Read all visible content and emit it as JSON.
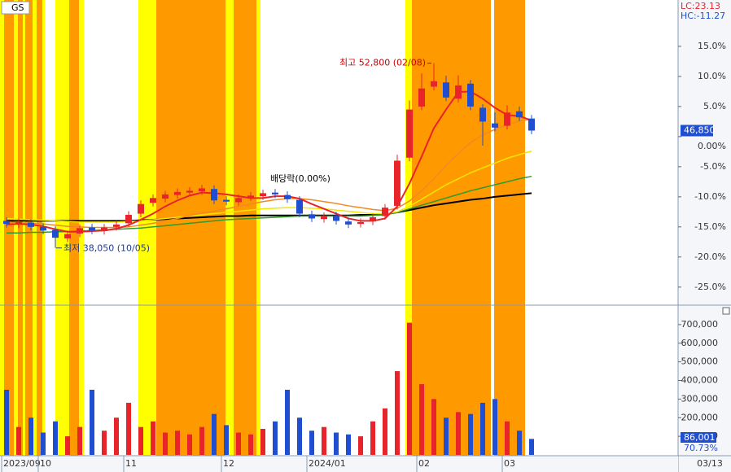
{
  "chart_data": [
    {
      "type": "candlestick",
      "title": "GS",
      "info": [
        "LC:23.13",
        "HC:-11.27"
      ],
      "categories": [
        "2023/09",
        null,
        null,
        "10",
        null,
        null,
        null,
        null,
        null,
        null,
        "11",
        null,
        null,
        null,
        null,
        null,
        null,
        null,
        "12",
        null,
        null,
        null,
        null,
        null,
        null,
        "2024/01",
        null,
        null,
        null,
        null,
        null,
        null,
        null,
        null,
        "02",
        null,
        null,
        null,
        null,
        null,
        null,
        "03",
        null,
        null
      ],
      "end_label": "03/13",
      "open": [
        -14.0,
        -14.6,
        -14.3,
        -15.0,
        -15.5,
        -16.9,
        -16.1,
        -15.1,
        -15.7,
        -15.0,
        -14.4,
        -12.8,
        -11.0,
        -10.3,
        -9.7,
        -9.3,
        -9.1,
        -8.7,
        -10.5,
        -10.9,
        -10.1,
        -9.9,
        -9.3,
        -9.7,
        -10.5,
        -12.9,
        -13.7,
        -13.1,
        -14.1,
        -14.5,
        -14.1,
        -13.2,
        -11.5,
        -3.5,
        5.0,
        8.3,
        9.0,
        6.3,
        8.8,
        4.8,
        2.2,
        1.8,
        4.2,
        3.0
      ],
      "high": [
        -13.4,
        -13.6,
        -13.7,
        -14.4,
        -14.9,
        -15.6,
        -14.6,
        -14.5,
        -14.5,
        -14.0,
        -12.4,
        -10.6,
        -9.6,
        -9.0,
        -8.6,
        -8.4,
        -8.0,
        -8.1,
        -9.9,
        -9.6,
        -9.2,
        -8.8,
        -8.7,
        -9.1,
        -9.9,
        -12.3,
        -12.6,
        -12.5,
        -13.5,
        -13.6,
        -12.8,
        -11.2,
        -3.0,
        6.0,
        10.5,
        12.2,
        10.1,
        10.2,
        9.4,
        5.4,
        4.0,
        5.2,
        5.0,
        3.6
      ],
      "low": [
        -15.1,
        -15.2,
        -15.6,
        -16.2,
        -18.5,
        -17.5,
        -16.7,
        -16.2,
        -16.3,
        -15.6,
        -15.0,
        -13.4,
        -11.6,
        -10.9,
        -10.3,
        -9.9,
        -9.7,
        -11.2,
        -11.4,
        -11.5,
        -10.7,
        -10.5,
        -10.2,
        -11.0,
        -13.4,
        -14.2,
        -14.3,
        -14.6,
        -15.2,
        -15.1,
        -14.7,
        -13.8,
        -12.1,
        -4.1,
        4.4,
        7.7,
        5.9,
        5.7,
        4.4,
        -1.5,
        0.9,
        1.2,
        2.6,
        0.4
      ],
      "close": [
        -14.5,
        -14.2,
        -15.0,
        -15.6,
        -16.8,
        -16.2,
        -15.2,
        -15.6,
        -15.1,
        -14.6,
        -13.0,
        -11.2,
        -10.2,
        -9.6,
        -9.2,
        -9.0,
        -8.6,
        -10.6,
        -10.8,
        -10.2,
        -9.8,
        -9.4,
        -9.6,
        -10.4,
        -12.8,
        -13.6,
        -13.2,
        -14.0,
        -14.6,
        -14.2,
        -13.4,
        -11.8,
        -4.0,
        4.5,
        8.0,
        9.2,
        6.5,
        8.5,
        5.0,
        2.5,
        1.5,
        4.0,
        3.2,
        1.0
      ],
      "up_color": "#e8242a",
      "down_color": "#1f4fd0",
      "series": [
        {
          "color": "#000000",
          "values": [
            -14.0,
            -14.0,
            -14.0,
            -14.0,
            -14.0,
            -14.0,
            -14.0,
            -14.0,
            -14.0,
            -14.0,
            -14.0,
            -13.9,
            -13.8,
            -13.7,
            -13.6,
            -13.5,
            -13.4,
            -13.3,
            -13.2,
            -13.2,
            -13.1,
            -13.1,
            -13.1,
            -13.1,
            -13.1,
            -13.1,
            -13.1,
            -13.1,
            -13.1,
            -13.0,
            -13.0,
            -12.9,
            -12.6,
            -12.2,
            -11.8,
            -11.4,
            -11.1,
            -10.8,
            -10.5,
            -10.3,
            -10.0,
            -9.8,
            -9.6,
            -9.4
          ]
        },
        {
          "color": "#2e9a2e",
          "values": [
            -16.0,
            -16.0,
            -15.9,
            -15.9,
            -15.8,
            -15.8,
            -15.7,
            -15.6,
            -15.5,
            -15.4,
            -15.3,
            -15.2,
            -15.0,
            -14.8,
            -14.6,
            -14.4,
            -14.2,
            -14.0,
            -13.8,
            -13.7,
            -13.6,
            -13.5,
            -13.4,
            -13.3,
            -13.2,
            -13.2,
            -13.2,
            -13.2,
            -13.2,
            -13.2,
            -13.1,
            -13.0,
            -12.6,
            -12.0,
            -11.4,
            -10.8,
            -10.2,
            -9.6,
            -9.0,
            -8.5,
            -8.0,
            -7.5,
            -7.0,
            -6.6
          ]
        },
        {
          "color": "#f2e600",
          "values": [
            -13.6,
            -13.7,
            -13.8,
            -13.9,
            -14.0,
            -14.1,
            -14.2,
            -14.2,
            -14.2,
            -14.2,
            -14.1,
            -14.0,
            -13.8,
            -13.6,
            -13.4,
            -13.2,
            -13.0,
            -12.8,
            -12.6,
            -12.4,
            -12.2,
            -12.0,
            -11.9,
            -11.8,
            -11.8,
            -11.9,
            -12.0,
            -12.2,
            -12.4,
            -12.6,
            -12.8,
            -12.8,
            -12.5,
            -11.6,
            -10.4,
            -9.2,
            -8.0,
            -7.0,
            -6.0,
            -5.2,
            -4.4,
            -3.6,
            -3.0,
            -2.4
          ]
        },
        {
          "color": "#f08a24",
          "values": [
            -14.2,
            -14.3,
            -14.4,
            -14.5,
            -14.7,
            -14.9,
            -15.0,
            -15.1,
            -15.1,
            -15.1,
            -15.0,
            -14.7,
            -14.4,
            -14.0,
            -13.6,
            -13.1,
            -12.7,
            -12.4,
            -12.0,
            -11.6,
            -11.2,
            -10.8,
            -10.5,
            -10.3,
            -10.3,
            -10.5,
            -10.8,
            -11.1,
            -11.5,
            -11.8,
            -12.1,
            -12.3,
            -11.9,
            -10.7,
            -9.0,
            -7.0,
            -4.8,
            -2.8,
            -1.0,
            0.3,
            1.2,
            2.0,
            2.6,
            2.9
          ]
        },
        {
          "color": "#e8242a",
          "values": [
            -14.6,
            -14.5,
            -14.6,
            -14.9,
            -15.4,
            -15.8,
            -15.8,
            -15.7,
            -15.6,
            -15.3,
            -14.7,
            -13.8,
            -12.8,
            -11.6,
            -10.6,
            -9.8,
            -9.3,
            -9.4,
            -9.6,
            -9.9,
            -10.2,
            -10.2,
            -9.9,
            -9.9,
            -10.3,
            -11.2,
            -12.0,
            -12.8,
            -13.6,
            -14.0,
            -14.0,
            -13.6,
            -11.6,
            -7.8,
            -3.3,
            1.4,
            4.5,
            7.4,
            7.5,
            6.3,
            4.8,
            3.6,
            3.4,
            2.7
          ]
        }
      ],
      "ylim": [
        -27.6,
        22.7
      ],
      "yticks": [
        {
          "value": 15,
          "label": "15.0%"
        },
        {
          "value": 10,
          "label": "10.0%"
        },
        {
          "value": 5,
          "label": "5.0%"
        },
        {
          "value": 0,
          "label": "0.00%"
        },
        {
          "value": -5,
          "label": "-5.0%"
        },
        {
          "value": -10,
          "label": "-10.0%"
        },
        {
          "value": -15,
          "label": "-15.0%"
        },
        {
          "value": -20,
          "label": "-20.0%"
        },
        {
          "value": -25,
          "label": "-25.0%"
        }
      ],
      "last_label": "46,850",
      "high_label": "최고 52,800 (02/08)",
      "low_label": "최저 38,050 (10/05)",
      "event_label": "배당락(0.00%)"
    },
    {
      "type": "bar",
      "values": [
        350000,
        150000,
        200000,
        120000,
        180000,
        100000,
        150000,
        350000,
        130000,
        200000,
        280000,
        150000,
        180000,
        120000,
        130000,
        110000,
        150000,
        220000,
        160000,
        120000,
        110000,
        140000,
        180000,
        350000,
        200000,
        130000,
        150000,
        120000,
        110000,
        100000,
        180000,
        250000,
        450000,
        710000,
        380000,
        300000,
        200000,
        230000,
        220000,
        280000,
        300000,
        180000,
        130000,
        86001
      ],
      "ylim": [
        0,
        800000
      ],
      "yticks": [
        {
          "value": 700000,
          "label": "700,000"
        },
        {
          "value": 600000,
          "label": "600,000"
        },
        {
          "value": 500000,
          "label": "500,000"
        },
        {
          "value": 400000,
          "label": "400,000"
        },
        {
          "value": 300000,
          "label": "300,000"
        },
        {
          "value": 200000,
          "label": "200,000"
        },
        {
          "value": 100000,
          "label": "100,000"
        }
      ],
      "last_label": "86,001",
      "ratio_label": "70.73%"
    }
  ]
}
